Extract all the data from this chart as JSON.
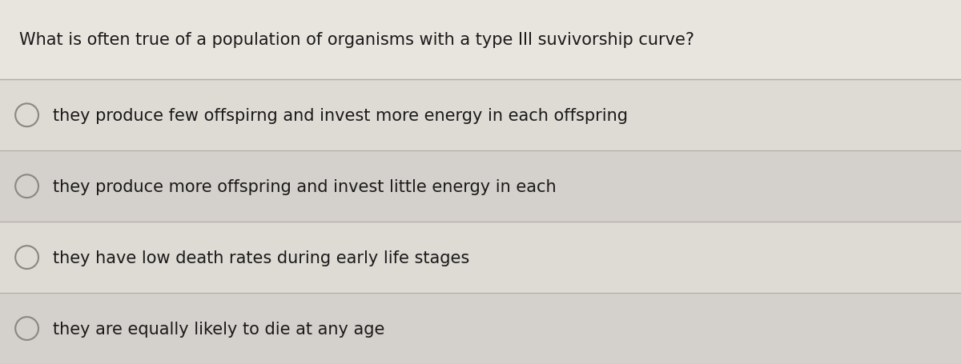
{
  "title": "What is often true of a population of organisms with a type III suvivorship curve?",
  "title_fontsize": 15,
  "title_color": "#1a1a1a",
  "title_weight": "normal",
  "options": [
    "they produce few offspirng and invest more energy in each offspring",
    "they produce more offspring and invest little energy in each",
    "they have low death rates during early life stages",
    "they are equally likely to die at any age"
  ],
  "option_fontsize": 15,
  "option_color": "#1a1a1a",
  "background_color": "#d4d0cb",
  "row_bg_colors": [
    "#dedad4",
    "#d4d0cb"
  ],
  "title_bg_color": "#e8e4de",
  "divider_color": "#b0aba4",
  "circle_color": "#888880",
  "fig_width": 12.0,
  "fig_height": 4.56
}
